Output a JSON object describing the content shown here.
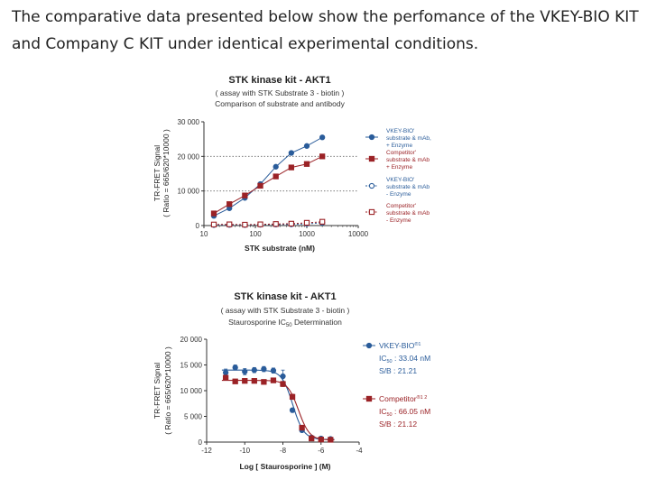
{
  "intro": {
    "line1": "The comparative data presented below show the perfomance of the VKEY-BIO KIT",
    "line2": "and Company C KIT under identical experimental conditions."
  },
  "colors": {
    "blue": "#2a5c9a",
    "red": "#9b2226",
    "grid": "#555555"
  },
  "chart_data": [
    {
      "type": "line",
      "title": "STK kinase kit - AKT1",
      "subtitle": [
        "( assay with STK Substrate 3 - biotin )",
        "Comparison of substrate and antibody"
      ],
      "xlabel": "STK substrate (nM)",
      "ylabel": [
        "TR-FRET Signal",
        "( Ratio = 665/620*10000 )"
      ],
      "xscale": "log",
      "xlim": [
        10,
        10000
      ],
      "ylim": [
        0,
        30000
      ],
      "xticks": [
        10,
        100,
        1000,
        10000
      ],
      "xtick_labels": [
        "10",
        "100",
        "1000",
        "10000"
      ],
      "yticks": [
        0,
        10000,
        20000,
        30000
      ],
      "ytick_labels": [
        "0",
        "10 000",
        "20 000",
        "30 000"
      ],
      "gridlines_y": [
        10000,
        20000
      ],
      "legend_position": "right",
      "series": [
        {
          "legend": [
            "VKEY-BIO'",
            "substrate & mAb,",
            "+ Enzyme"
          ],
          "color": "#2a5c9a",
          "marker": "circle",
          "filled": true,
          "x": [
            15.6,
            31.25,
            62.5,
            125,
            250,
            500,
            1000,
            2000
          ],
          "y": [
            2800,
            5000,
            8000,
            12000,
            17000,
            21000,
            23000,
            25500
          ]
        },
        {
          "legend": [
            "Competitor'",
            "substrate & mAb",
            "+ Enzyme"
          ],
          "color": "#9b2226",
          "marker": "square",
          "filled": true,
          "x": [
            15.6,
            31.25,
            62.5,
            125,
            250,
            500,
            1000,
            2000
          ],
          "y": [
            3500,
            6200,
            8700,
            11500,
            14200,
            16800,
            17800,
            20000
          ]
        },
        {
          "legend": [
            "VKEY-BIO'",
            "substrate & mAb",
            "- Enzyme"
          ],
          "color": "#2a5c9a",
          "marker": "circle",
          "filled": false,
          "x": [
            15.6,
            31.25,
            62.5,
            125,
            250,
            500,
            1000,
            2000
          ],
          "y": [
            150,
            200,
            150,
            250,
            300,
            350,
            500,
            800
          ]
        },
        {
          "legend": [
            "Competitor'",
            "substrate & mAb",
            "- Enzyme"
          ],
          "color": "#9b2226",
          "marker": "square",
          "filled": false,
          "x": [
            15.6,
            31.25,
            62.5,
            125,
            250,
            500,
            1000,
            2000
          ],
          "y": [
            300,
            350,
            250,
            350,
            450,
            550,
            800,
            1100
          ]
        }
      ]
    },
    {
      "type": "line",
      "title": "STK kinase kit  -  AKT1",
      "subtitle": [
        "( assay with STK Substrate 3 - biotin )",
        "Staurosporine IC50 Determination"
      ],
      "xlabel": "Log [ Staurosporine ]  (M)",
      "ylabel": [
        "TR-FRET Signal",
        "( Ratio = 665/620*10000 )"
      ],
      "xlim": [
        -12,
        -4
      ],
      "ylim": [
        0,
        20000
      ],
      "xticks": [
        -12,
        -10,
        -8,
        -6,
        -4
      ],
      "xtick_labels": [
        "-12",
        "-10",
        "-8",
        "-6",
        "-4"
      ],
      "yticks": [
        0,
        5000,
        10000,
        15000,
        20000
      ],
      "ytick_labels": [
        "0",
        "5 000",
        "10 000",
        "15 000",
        "20 000"
      ],
      "legend_position": "right",
      "series": [
        {
          "name": "VKEY-BIO",
          "sup": "®1",
          "ic50": "33.04 nM",
          "sb": "21.21",
          "color": "#2a5c9a",
          "marker": "circle",
          "fit": {
            "top": 14000,
            "bottom": 500,
            "logic50": -7.48,
            "hill": 1.5
          },
          "x": [
            -11,
            -10.5,
            -10,
            -9.5,
            -9,
            -8.5,
            -8,
            -7.5,
            -7,
            -6.5,
            -6,
            -5.5
          ],
          "y": [
            13500,
            14500,
            13700,
            14000,
            14200,
            13900,
            12800,
            6200,
            2300,
            900,
            700,
            600
          ],
          "err": [
            700,
            500,
            600,
            500,
            500,
            500,
            1200,
            400,
            300,
            200,
            200,
            150
          ]
        },
        {
          "name": "Competitor",
          "sup": "®1 2",
          "ic50": "66.05 nM",
          "sb": "21.12",
          "color": "#9b2226",
          "marker": "square",
          "fit": {
            "top": 12000,
            "bottom": 400,
            "logic50": -7.18,
            "hill": 1.5
          },
          "x": [
            -11,
            -10.5,
            -10,
            -9.5,
            -9,
            -8.5,
            -8,
            -7.5,
            -7,
            -6.5,
            -6,
            -5.5
          ],
          "y": [
            12500,
            11800,
            11900,
            11900,
            11700,
            12000,
            11300,
            8800,
            2800,
            700,
            500,
            450
          ],
          "err": [
            500,
            400,
            400,
            400,
            400,
            400,
            500,
            500,
            400,
            200,
            150,
            150
          ]
        }
      ]
    }
  ]
}
